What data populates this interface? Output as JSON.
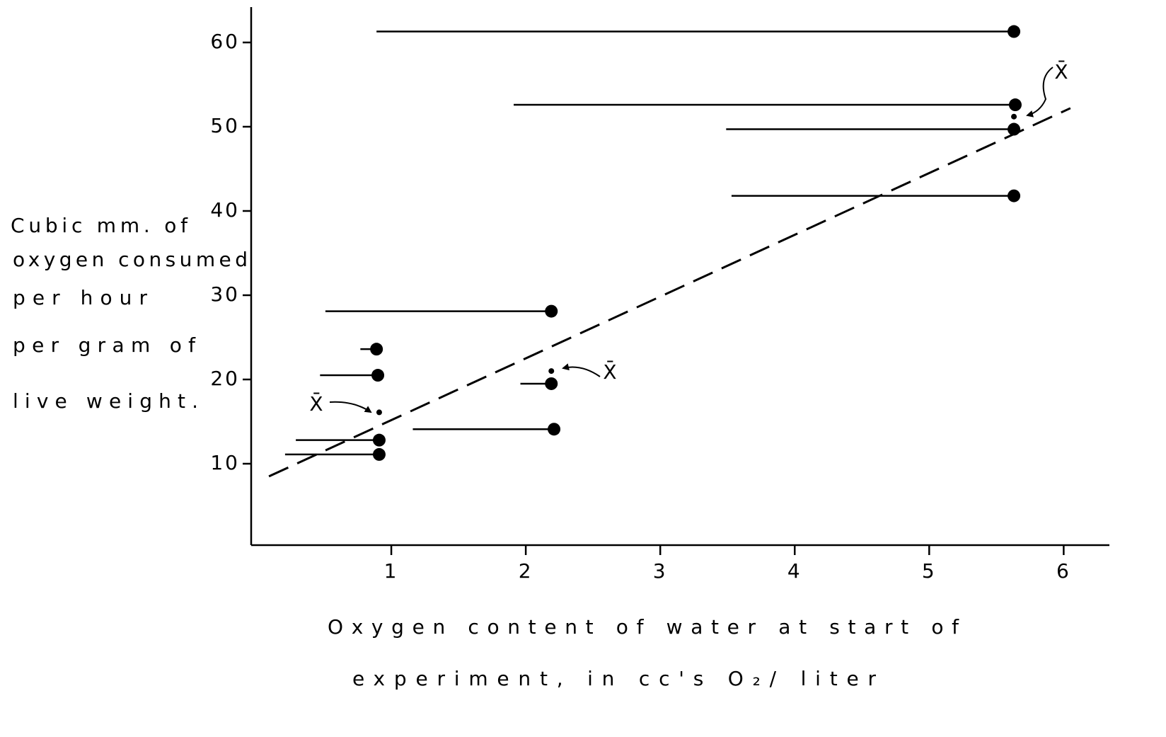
{
  "chart_data": {
    "type": "scatter",
    "x_label": [
      "Oxygen content of water at start of",
      "experiment, in cc's O₂/ liter"
    ],
    "y_label": [
      "Cubic mm. of",
      "oxygen consumed",
      "per hour",
      "per gram of",
      "live weight."
    ],
    "xlim": [
      0,
      6.34
    ],
    "ylim": [
      0,
      64.2
    ],
    "xticks": [
      1,
      2,
      3,
      4,
      5,
      6
    ],
    "yticks": [
      10,
      20,
      30,
      40,
      50,
      60
    ],
    "color": "#000000",
    "points": {
      "x": [
        5.63,
        5.64,
        5.63,
        5.63,
        2.19,
        0.89,
        0.9,
        2.19,
        2.21,
        0.91,
        0.91
      ],
      "x_start": [
        0.89,
        1.91,
        3.49,
        3.53,
        0.51,
        0.77,
        0.47,
        1.96,
        1.16,
        0.29,
        0.21
      ],
      "values": [
        61.3,
        52.6,
        49.7,
        41.8,
        28.1,
        23.6,
        20.5,
        19.5,
        14.1,
        12.8,
        11.1
      ]
    },
    "means": {
      "labels": [
        "X̄",
        "X̄",
        "X̄"
      ],
      "x": [
        0.91,
        2.19,
        5.63
      ],
      "values": [
        16.1,
        21.0,
        51.2
      ]
    },
    "trend": {
      "x": [
        0.09,
        6.05
      ],
      "values": [
        8.5,
        52.2
      ]
    }
  }
}
